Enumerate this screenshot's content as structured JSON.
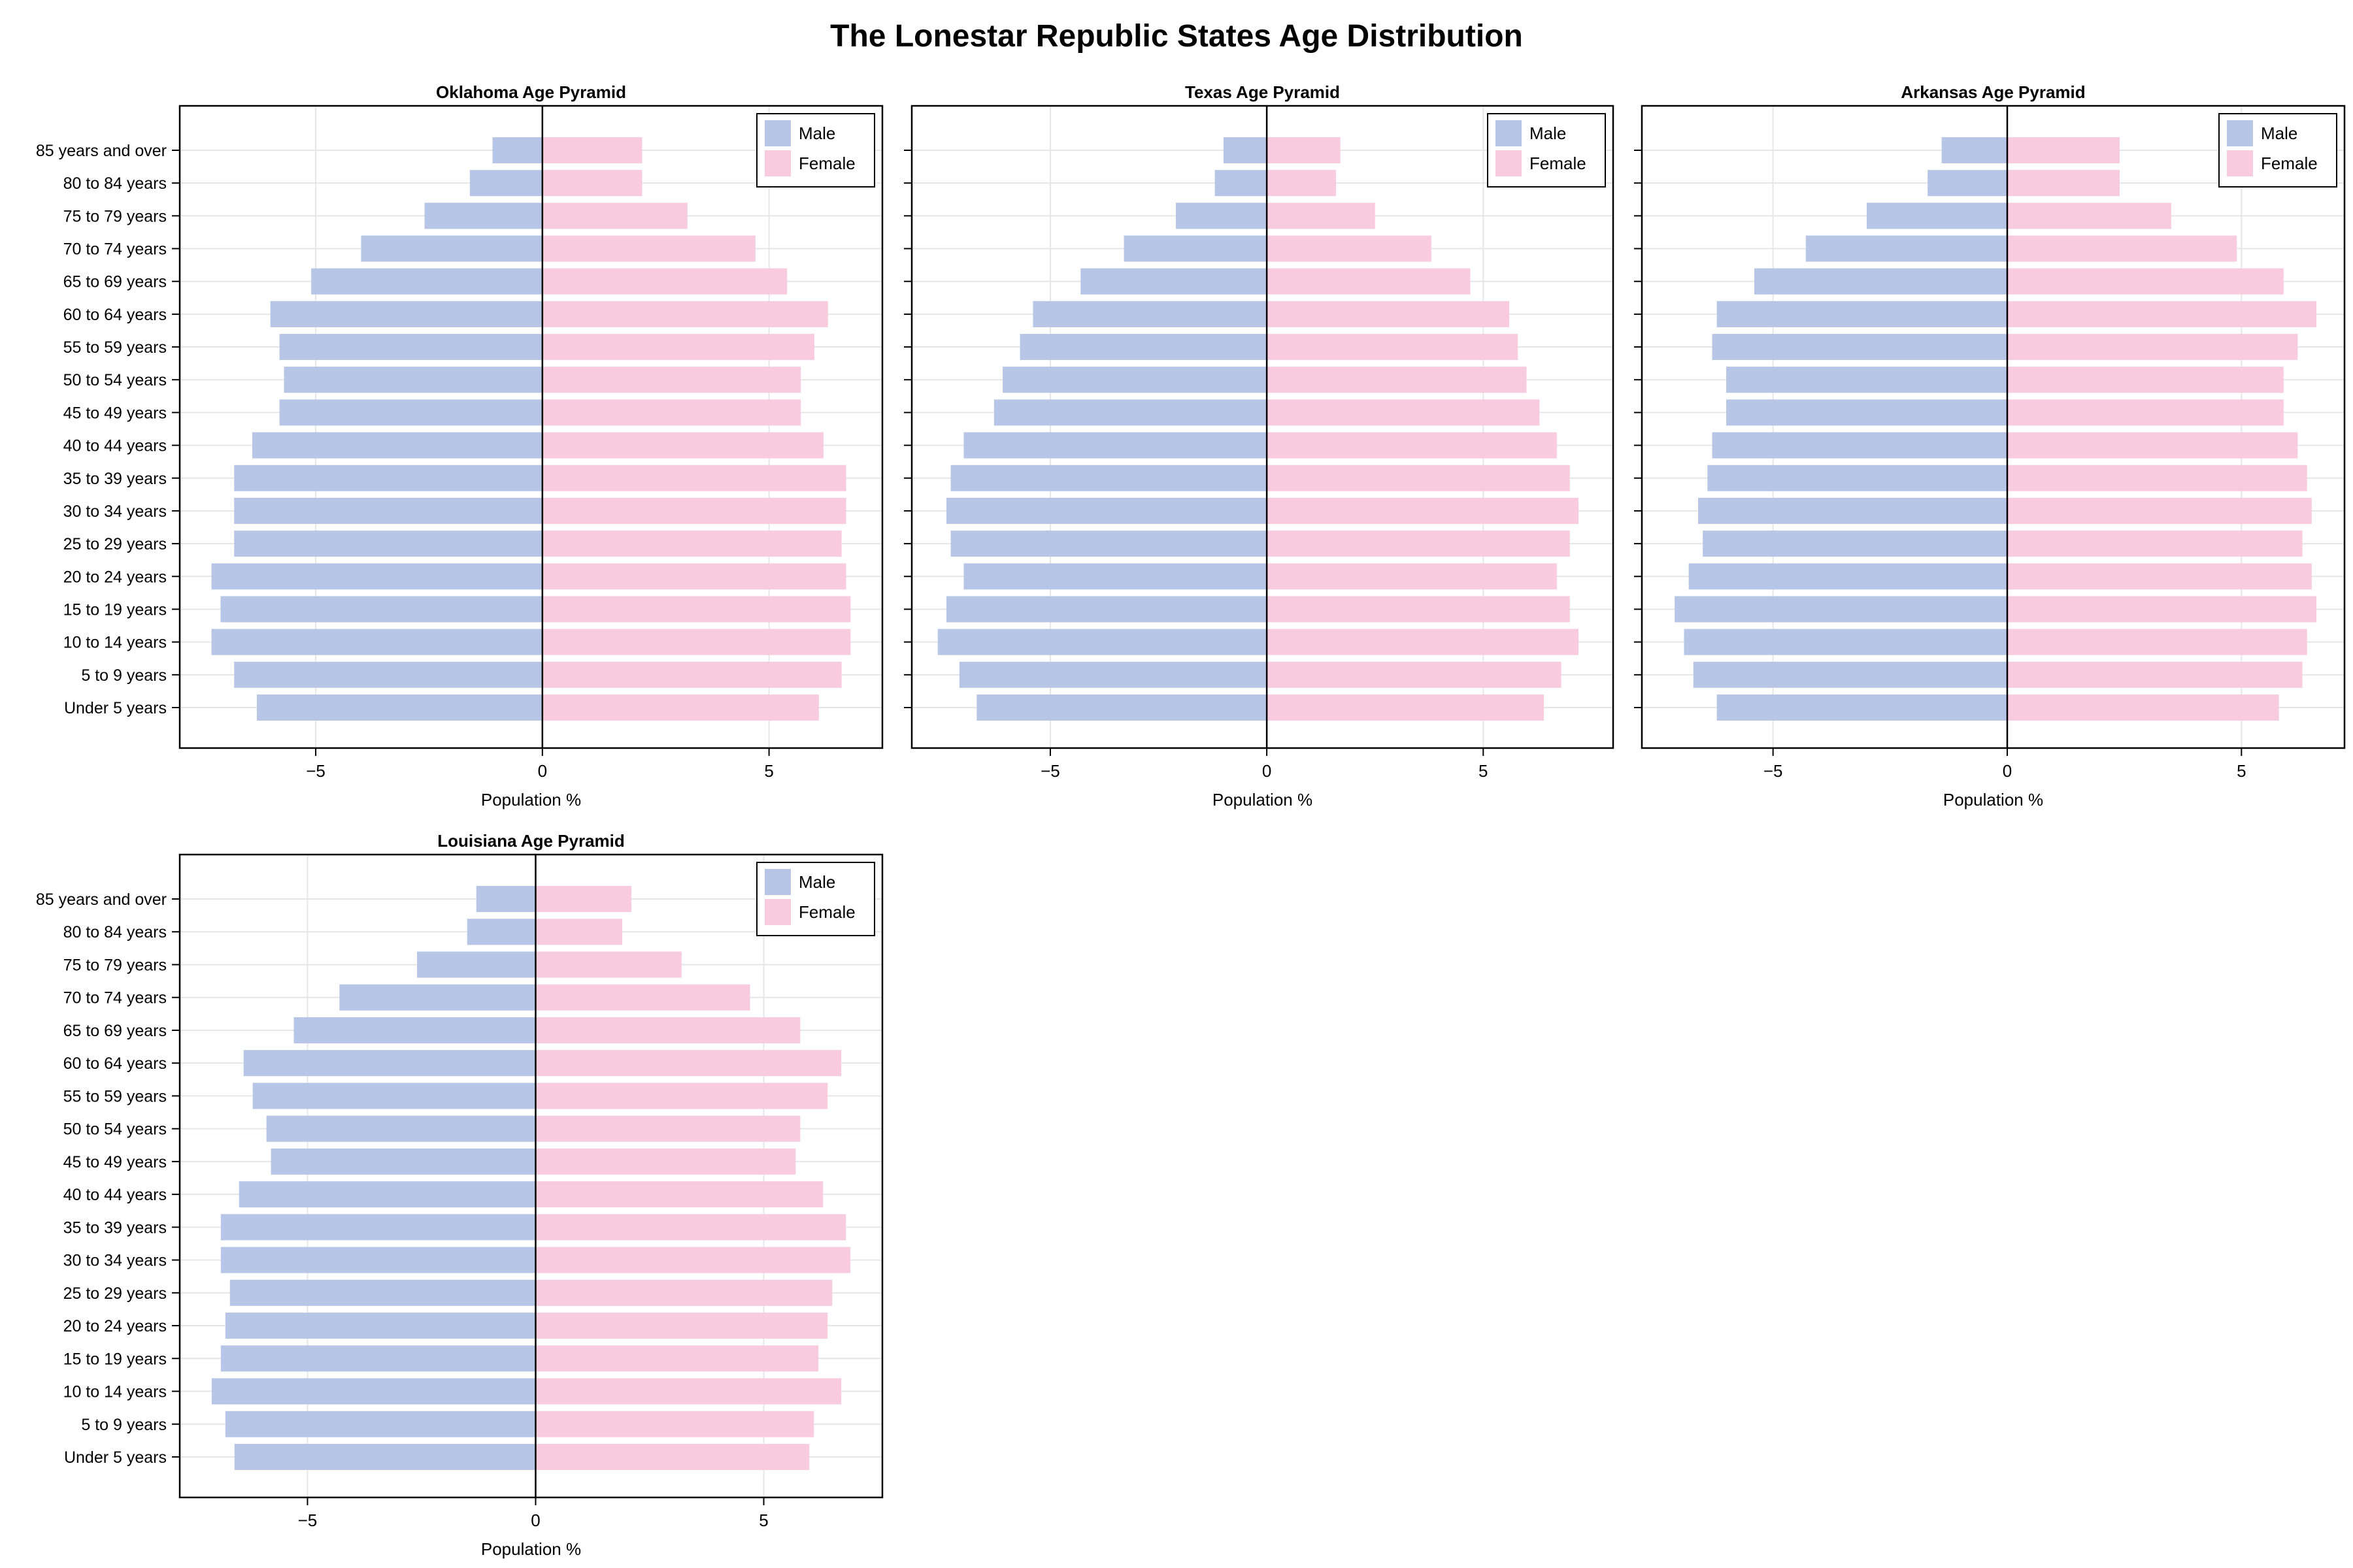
{
  "figure": {
    "title": "The Lonestar Republic States Age Distribution"
  },
  "colors": {
    "male": "#b7c5e6",
    "female": "#f9cbdf",
    "grid": "#e6e6e6",
    "axis": "#000000"
  },
  "age_groups": [
    "Under 5 years",
    "5 to 9 years",
    "10 to 14 years",
    "15 to 19 years",
    "20 to 24 years",
    "25 to 29 years",
    "30 to 34 years",
    "35 to 39 years",
    "40 to 44 years",
    "45 to 49 years",
    "50 to 54 years",
    "55 to 59 years",
    "60 to 64 years",
    "65 to 69 years",
    "70 to 74 years",
    "75 to 79 years",
    "80 to 84 years",
    "85 years and over"
  ],
  "chart_data": [
    {
      "type": "bar",
      "orientation": "horizontal",
      "title": "Oklahoma Age Pyramid",
      "xlabel": "Population %",
      "ylabel": "",
      "xticks": [
        -5,
        0,
        5
      ],
      "xtick_labels": [
        "−5",
        "0",
        "5"
      ],
      "xlim": [
        -8.0,
        7.5
      ],
      "legend": "top-right",
      "grid": true,
      "categories": [
        "Under 5 years",
        "5 to 9 years",
        "10 to 14 years",
        "15 to 19 years",
        "20 to 24 years",
        "25 to 29 years",
        "30 to 34 years",
        "35 to 39 years",
        "40 to 44 years",
        "45 to 49 years",
        "50 to 54 years",
        "55 to 59 years",
        "60 to 64 years",
        "65 to 69 years",
        "70 to 74 years",
        "75 to 79 years",
        "80 to 84 years",
        "85 years and over"
      ],
      "series": [
        {
          "name": "Male",
          "values": [
            -6.3,
            -6.8,
            -7.3,
            -7.1,
            -7.3,
            -6.8,
            -6.8,
            -6.8,
            -6.4,
            -5.8,
            -5.7,
            -5.8,
            -6.0,
            -5.1,
            -4.0,
            -2.6,
            -1.6,
            -1.1
          ]
        },
        {
          "name": "Female",
          "values": [
            6.1,
            6.6,
            6.8,
            6.8,
            6.7,
            6.6,
            6.7,
            6.7,
            6.2,
            5.7,
            5.7,
            6.0,
            6.3,
            5.4,
            4.7,
            3.2,
            2.2,
            2.2
          ]
        }
      ]
    },
    {
      "type": "bar",
      "orientation": "horizontal",
      "title": "Texas Age Pyramid",
      "xlabel": "Population %",
      "ylabel": "",
      "xticks": [
        -5,
        0,
        5
      ],
      "xtick_labels": [
        "−5",
        "0",
        "5"
      ],
      "xlim": [
        -8.2,
        8.0
      ],
      "legend": "top-right",
      "grid": true,
      "categories": [
        "Under 5 years",
        "5 to 9 years",
        "10 to 14 years",
        "15 to 19 years",
        "20 to 24 years",
        "25 to 29 years",
        "30 to 34 years",
        "35 to 39 years",
        "40 to 44 years",
        "45 to 49 years",
        "50 to 54 years",
        "55 to 59 years",
        "60 to 64 years",
        "65 to 69 years",
        "70 to 74 years",
        "75 to 79 years",
        "80 to 84 years",
        "85 years and over"
      ],
      "series": [
        {
          "name": "Male",
          "values": [
            -6.7,
            -7.1,
            -7.6,
            -7.4,
            -7.0,
            -7.3,
            -7.4,
            -7.3,
            -7.0,
            -6.3,
            -6.1,
            -5.7,
            -5.4,
            -4.3,
            -3.3,
            -2.1,
            -1.2,
            -1.0
          ]
        },
        {
          "name": "Female",
          "values": [
            6.4,
            6.8,
            7.2,
            7.0,
            6.7,
            7.0,
            7.2,
            7.0,
            6.7,
            6.3,
            6.0,
            5.8,
            5.6,
            4.7,
            3.8,
            2.5,
            1.6,
            1.7
          ]
        }
      ]
    },
    {
      "type": "bar",
      "orientation": "horizontal",
      "title": "Arkansas Age Pyramid",
      "xlabel": "Population %",
      "ylabel": "",
      "xticks": [
        -5,
        0,
        5
      ],
      "xtick_labels": [
        "−5",
        "0",
        "5"
      ],
      "xlim": [
        -7.8,
        7.2
      ],
      "legend": "top-right",
      "grid": true,
      "categories": [
        "Under 5 years",
        "5 to 9 years",
        "10 to 14 years",
        "15 to 19 years",
        "20 to 24 years",
        "25 to 29 years",
        "30 to 34 years",
        "35 to 39 years",
        "40 to 44 years",
        "45 to 49 years",
        "50 to 54 years",
        "55 to 59 years",
        "60 to 64 years",
        "65 to 69 years",
        "70 to 74 years",
        "75 to 79 years",
        "80 to 84 years",
        "85 years and over"
      ],
      "series": [
        {
          "name": "Male",
          "values": [
            -6.2,
            -6.7,
            -6.9,
            -7.1,
            -6.8,
            -6.5,
            -6.6,
            -6.4,
            -6.3,
            -6.0,
            -6.0,
            -6.3,
            -6.2,
            -5.4,
            -4.3,
            -3.0,
            -1.7,
            -1.4
          ]
        },
        {
          "name": "Female",
          "values": [
            5.8,
            6.3,
            6.4,
            6.6,
            6.5,
            6.3,
            6.5,
            6.4,
            6.2,
            5.9,
            5.9,
            6.2,
            6.6,
            5.9,
            4.9,
            3.5,
            2.4,
            2.4
          ]
        }
      ]
    },
    {
      "type": "bar",
      "orientation": "horizontal",
      "title": "Louisiana Age Pyramid",
      "xlabel": "Population %",
      "ylabel": "",
      "xticks": [
        -5,
        0,
        5
      ],
      "xtick_labels": [
        "−5",
        "0",
        "5"
      ],
      "xlim": [
        -7.8,
        7.6
      ],
      "legend": "top-right",
      "grid": true,
      "categories": [
        "Under 5 years",
        "5 to 9 years",
        "10 to 14 years",
        "15 to 19 years",
        "20 to 24 years",
        "25 to 29 years",
        "30 to 34 years",
        "35 to 39 years",
        "40 to 44 years",
        "45 to 49 years",
        "50 to 54 years",
        "55 to 59 years",
        "60 to 64 years",
        "65 to 69 years",
        "70 to 74 years",
        "75 to 79 years",
        "80 to 84 years",
        "85 years and over"
      ],
      "series": [
        {
          "name": "Male",
          "values": [
            -6.6,
            -6.8,
            -7.1,
            -6.9,
            -6.8,
            -6.7,
            -6.9,
            -6.9,
            -6.5,
            -5.8,
            -5.9,
            -6.2,
            -6.4,
            -5.3,
            -4.3,
            -2.6,
            -1.5,
            -1.3
          ]
        },
        {
          "name": "Female",
          "values": [
            6.0,
            6.1,
            6.7,
            6.2,
            6.4,
            6.5,
            6.9,
            6.8,
            6.3,
            5.7,
            5.8,
            6.4,
            6.7,
            5.8,
            4.7,
            3.2,
            1.9,
            2.1
          ]
        }
      ]
    }
  ]
}
